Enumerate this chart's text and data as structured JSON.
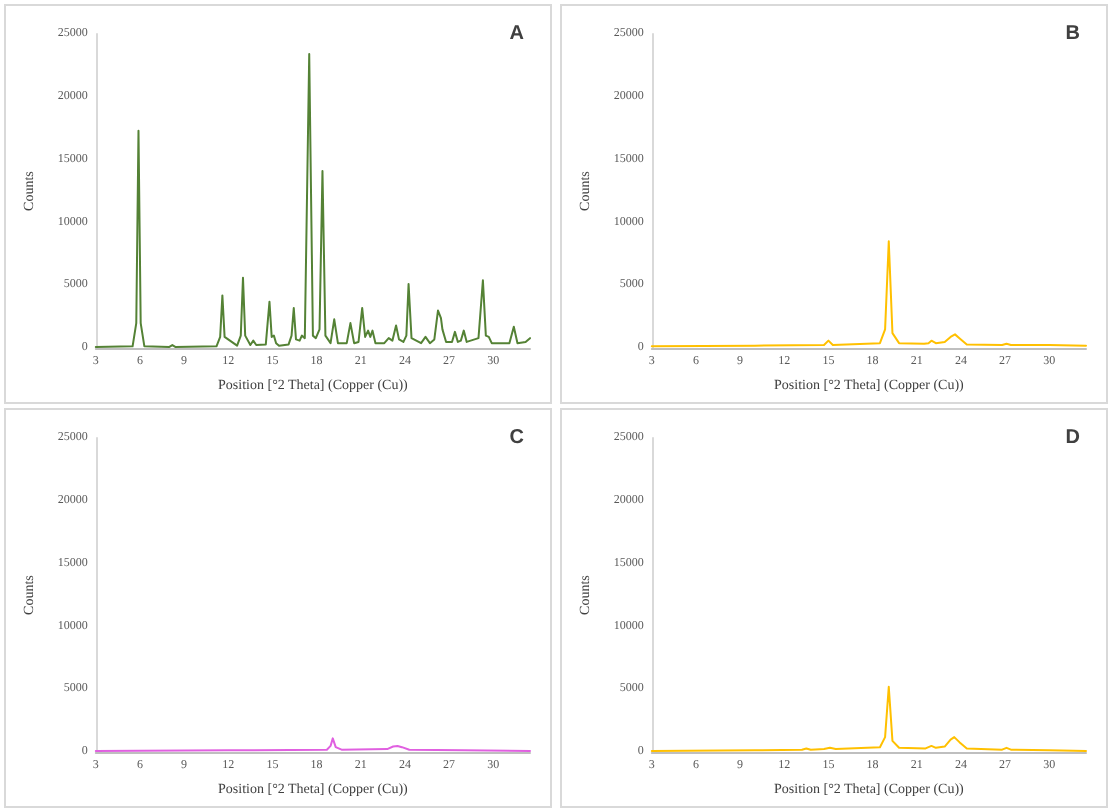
{
  "chart_data": [
    {
      "type": "line",
      "title": "A",
      "xlabel": "Position [°2 Theta] (Copper (Cu))",
      "ylabel": "Counts",
      "color": "#548235",
      "marker": "none",
      "line_style": "solid",
      "xlim": [
        3,
        32.5
      ],
      "xticks": [
        3,
        6,
        9,
        12,
        15,
        18,
        21,
        24,
        27,
        30
      ],
      "ylim": [
        0,
        25000
      ],
      "yticks": [
        0,
        5000,
        10000,
        15000,
        20000,
        25000
      ],
      "x": [
        3,
        5.5,
        5.75,
        5.9,
        6.05,
        6.3,
        8.0,
        8.2,
        8.4,
        11.2,
        11.45,
        11.6,
        11.75,
        12.6,
        12.85,
        13.0,
        13.15,
        13.5,
        13.7,
        13.9,
        14.55,
        14.8,
        14.95,
        15.1,
        15.25,
        15.45,
        16.1,
        16.3,
        16.45,
        16.6,
        16.85,
        17.0,
        17.2,
        17.5,
        17.75,
        17.95,
        18.2,
        18.4,
        18.6,
        18.95,
        19.2,
        19.45,
        20.05,
        20.3,
        20.55,
        20.85,
        21.1,
        21.3,
        21.5,
        21.65,
        21.8,
        22.0,
        22.6,
        22.9,
        23.15,
        23.4,
        23.6,
        23.9,
        24.1,
        24.25,
        24.45,
        25.1,
        25.4,
        25.7,
        26.0,
        26.25,
        26.45,
        26.55,
        26.8,
        27.2,
        27.4,
        27.6,
        27.8,
        28.0,
        28.2,
        29.0,
        29.3,
        29.5,
        29.7,
        29.9,
        31.1,
        31.4,
        31.65,
        32.2,
        32.5
      ],
      "values": [
        100,
        150,
        2000,
        17300,
        2000,
        150,
        100,
        250,
        100,
        150,
        900,
        4200,
        900,
        200,
        1000,
        5600,
        1000,
        250,
        600,
        250,
        300,
        3700,
        900,
        1000,
        400,
        200,
        300,
        1000,
        3200,
        700,
        600,
        1000,
        800,
        23400,
        1000,
        800,
        1500,
        14100,
        1000,
        400,
        2300,
        400,
        400,
        2000,
        400,
        500,
        3200,
        900,
        1400,
        900,
        1400,
        400,
        400,
        800,
        600,
        1800,
        700,
        500,
        1000,
        5100,
        800,
        400,
        900,
        400,
        700,
        3000,
        2400,
        1500,
        500,
        500,
        1300,
        500,
        600,
        1400,
        500,
        800,
        5400,
        1000,
        900,
        400,
        400,
        1700,
        400,
        500,
        800
      ]
    },
    {
      "type": "line",
      "title": "B",
      "xlabel": "Position [°2 Theta] (Copper (Cu))",
      "ylabel": "Counts",
      "color": "#ffc000",
      "marker": "none",
      "line_style": "solid",
      "xlim": [
        3,
        32.5
      ],
      "xticks": [
        3,
        6,
        9,
        12,
        15,
        18,
        21,
        24,
        27,
        30
      ],
      "ylim": [
        0,
        25000
      ],
      "yticks": [
        0,
        5000,
        10000,
        15000,
        20000,
        25000
      ],
      "x": [
        3,
        10,
        14.7,
        15.0,
        15.3,
        18.5,
        18.85,
        19.1,
        19.35,
        19.8,
        21.5,
        21.8,
        22.0,
        22.3,
        22.9,
        23.3,
        23.6,
        23.9,
        24.4,
        26.8,
        27.1,
        27.4,
        30,
        32.5
      ],
      "values": [
        150,
        200,
        250,
        600,
        250,
        400,
        1500,
        8500,
        1200,
        400,
        350,
        400,
        600,
        400,
        500,
        900,
        1100,
        800,
        300,
        250,
        350,
        250,
        250,
        200
      ]
    },
    {
      "type": "line",
      "title": "C",
      "xlabel": "Position [°2 Theta] (Copper (Cu))",
      "ylabel": "Counts",
      "color": "#e060e0",
      "marker": "none",
      "line_style": "solid",
      "xlim": [
        3,
        32.5
      ],
      "xticks": [
        3,
        6,
        9,
        12,
        15,
        18,
        21,
        24,
        27,
        30
      ],
      "ylim": [
        0,
        25000
      ],
      "yticks": [
        0,
        5000,
        10000,
        15000,
        20000,
        25000
      ],
      "x": [
        3,
        12,
        18.7,
        18.95,
        19.1,
        19.3,
        19.7,
        22.8,
        23.2,
        23.5,
        23.8,
        24.3,
        28,
        32.5
      ],
      "values": [
        100,
        150,
        200,
        500,
        1100,
        400,
        200,
        250,
        450,
        500,
        400,
        200,
        150,
        100
      ]
    },
    {
      "type": "line",
      "title": "D",
      "xlabel": "Position [°2 Theta] (Copper (Cu))",
      "ylabel": "Counts",
      "color": "#ffc000",
      "marker": "none",
      "line_style": "solid",
      "xlim": [
        3,
        32.5
      ],
      "xticks": [
        3,
        6,
        9,
        12,
        15,
        18,
        21,
        24,
        27,
        30
      ],
      "ylim": [
        0,
        25000
      ],
      "yticks": [
        0,
        5000,
        10000,
        15000,
        20000,
        25000
      ],
      "x": [
        3,
        10,
        13.2,
        13.5,
        13.8,
        14.7,
        15.1,
        15.5,
        18.5,
        18.85,
        19.1,
        19.35,
        19.8,
        21.6,
        22.0,
        22.3,
        22.9,
        23.3,
        23.55,
        23.9,
        24.4,
        26.8,
        27.1,
        27.4,
        30,
        32.5
      ],
      "values": [
        100,
        150,
        200,
        300,
        200,
        250,
        350,
        250,
        400,
        1200,
        5200,
        900,
        350,
        300,
        500,
        350,
        450,
        1000,
        1200,
        800,
        300,
        200,
        350,
        200,
        150,
        100
      ]
    }
  ]
}
